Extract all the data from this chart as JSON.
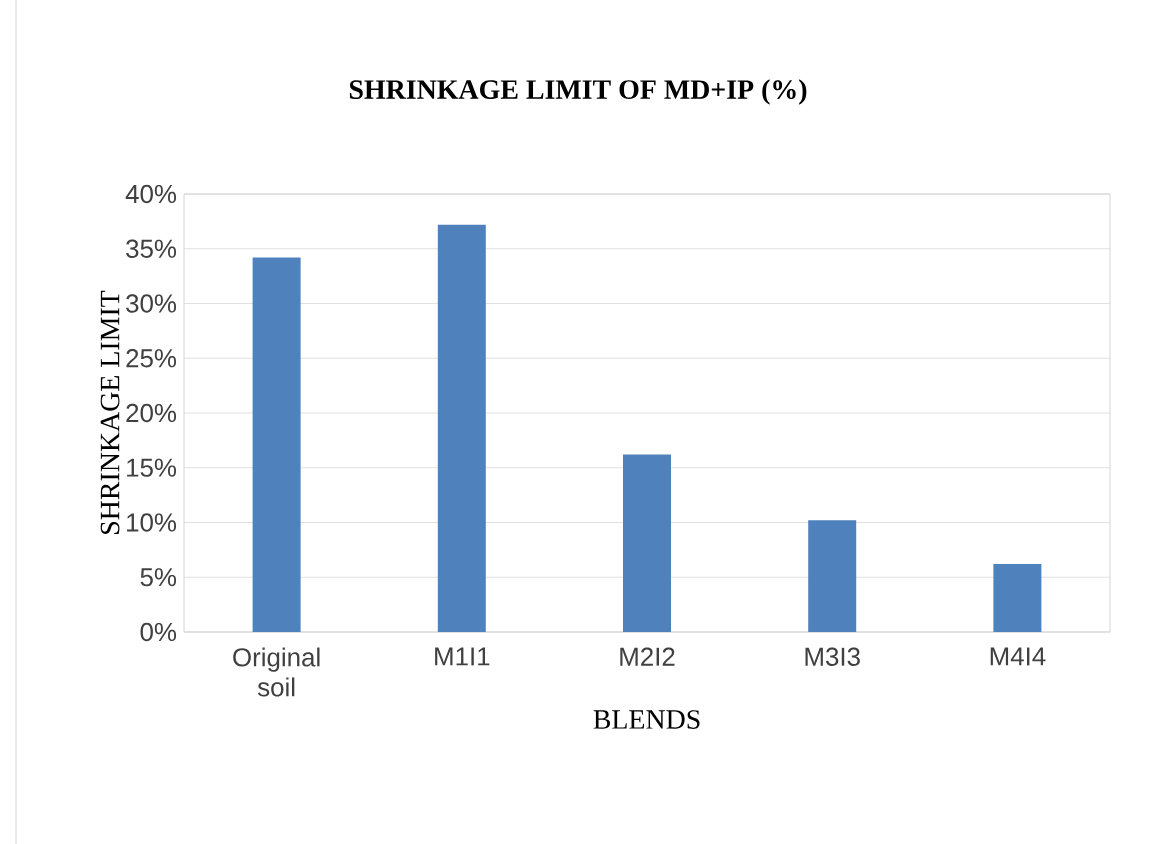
{
  "chart_data": {
    "type": "bar",
    "title": "SHRINKAGE LIMIT OF MD+IP (%)",
    "xlabel": "BLENDS",
    "ylabel": "SHRINKAGE  LIMIT",
    "categories": [
      "Original soil",
      "M1I1",
      "M2I2",
      "M3I3",
      "M4I4"
    ],
    "values": [
      34.2,
      37.2,
      16.2,
      10.2,
      6.2
    ],
    "color": "#4f81bd",
    "ylim": [
      0,
      40
    ],
    "yticks": [
      {
        "value": 0,
        "label": "0%"
      },
      {
        "value": 5,
        "label": "5%"
      },
      {
        "value": 10,
        "label": "10%"
      },
      {
        "value": 15,
        "label": "15%"
      },
      {
        "value": 20,
        "label": "20%"
      },
      {
        "value": 25,
        "label": "25%"
      },
      {
        "value": 30,
        "label": "30%"
      },
      {
        "value": 35,
        "label": "35%"
      },
      {
        "value": 40,
        "label": "40%"
      }
    ],
    "grid": "y"
  }
}
